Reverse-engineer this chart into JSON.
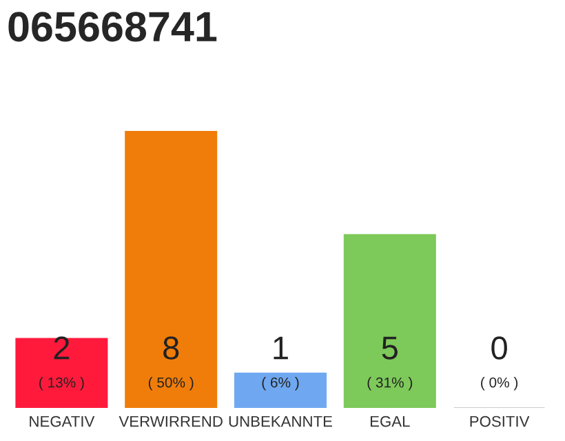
{
  "chart_data": {
    "type": "bar",
    "title": "065668741",
    "categories": [
      "NEGATIV",
      "VERWIRREND",
      "UNBEKANNTE",
      "EGAL",
      "POSITIV"
    ],
    "values": [
      2,
      8,
      1,
      5,
      0
    ],
    "colors": [
      "#ff1a3c",
      "#f07d0a",
      "#6fa8f0",
      "#7dc95a",
      "#cccccc"
    ],
    "value_labels": [
      "2",
      "8",
      "1",
      "5",
      "0"
    ],
    "annotations": [
      "( 13% )",
      "( 50% )",
      "( 6% )",
      "( 31% )",
      "( 0% )"
    ],
    "tick_labels": "x"
  }
}
